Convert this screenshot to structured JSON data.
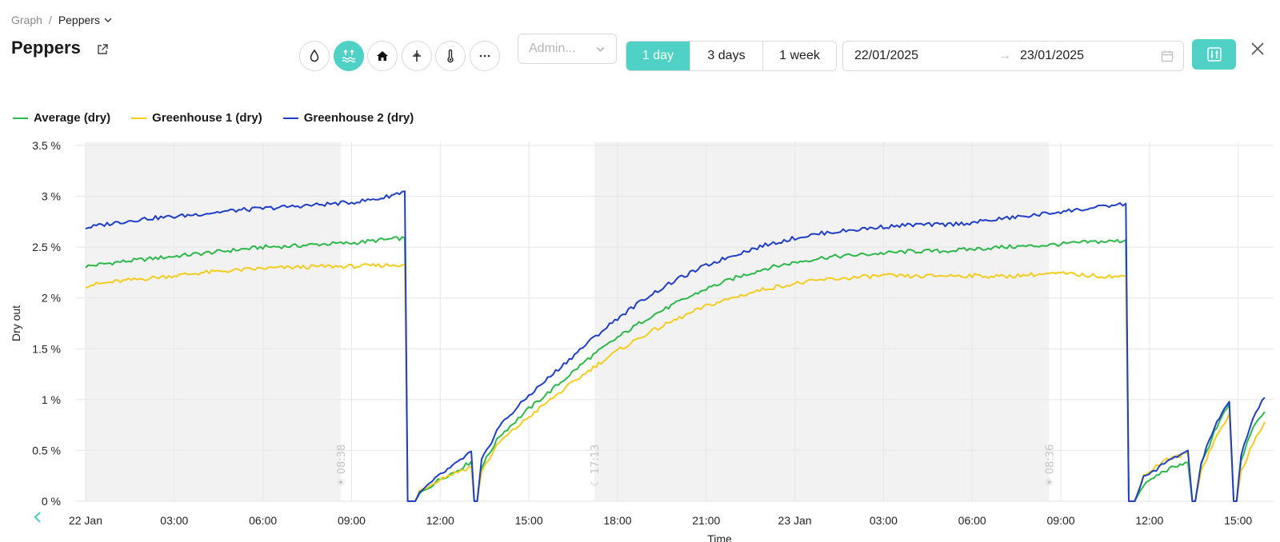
{
  "breadcrumb": {
    "root": "Graph",
    "separator": "/",
    "current": "Peppers"
  },
  "page_title": "Peppers",
  "icon_buttons": [
    {
      "icon": "droplet-icon",
      "active": false
    },
    {
      "icon": "water-level-icon",
      "active": true
    },
    {
      "icon": "greenhouse-icon",
      "active": false
    },
    {
      "icon": "sensor-probe-icon",
      "active": false
    },
    {
      "icon": "thermometer-icon",
      "active": false
    },
    {
      "icon": "more-icon",
      "active": false
    }
  ],
  "select": {
    "value": "Admin..."
  },
  "range_buttons": [
    {
      "label": "1 day",
      "active": true
    },
    {
      "label": "3 days",
      "active": false
    },
    {
      "label": "1 week",
      "active": false
    }
  ],
  "date_range": {
    "from": "22/01/2025",
    "arrow": "→",
    "to": "23/01/2025"
  },
  "colors": {
    "accent": "#4fd1c5",
    "average": "#2db84a",
    "gh1": "#f2cc1f",
    "gh2": "#1f3fc7",
    "night": "#f2f2f2",
    "grid": "#e6e6e6"
  },
  "chart_data": {
    "type": "line",
    "xlabel": "Time",
    "ylabel": "Dry out",
    "x_unit": "hours since 22 Jan 00:00",
    "xlim": [
      0,
      40.2
    ],
    "ylim": [
      0,
      3.5
    ],
    "y_ticks": [
      {
        "value": 0,
        "label": "0 %"
      },
      {
        "value": 0.5,
        "label": "0.5 %"
      },
      {
        "value": 1,
        "label": "1 %"
      },
      {
        "value": 1.5,
        "label": "1.5 %"
      },
      {
        "value": 2,
        "label": "2 %"
      },
      {
        "value": 2.5,
        "label": "2.5 %"
      },
      {
        "value": 3,
        "label": "3 %"
      },
      {
        "value": 3.5,
        "label": "3.5 %"
      }
    ],
    "x_ticks": [
      {
        "value": 0,
        "label": "22 Jan"
      },
      {
        "value": 3,
        "label": "03:00"
      },
      {
        "value": 6,
        "label": "06:00"
      },
      {
        "value": 9,
        "label": "09:00"
      },
      {
        "value": 12,
        "label": "12:00"
      },
      {
        "value": 15,
        "label": "15:00"
      },
      {
        "value": 18,
        "label": "18:00"
      },
      {
        "value": 21,
        "label": "21:00"
      },
      {
        "value": 24,
        "label": "23 Jan"
      },
      {
        "value": 27,
        "label": "03:00"
      },
      {
        "value": 30,
        "label": "06:00"
      },
      {
        "value": 33,
        "label": "09:00"
      },
      {
        "value": 36,
        "label": "12:00"
      },
      {
        "value": 39,
        "label": "15:00"
      }
    ],
    "night_bands": [
      [
        0,
        8.63
      ],
      [
        17.22,
        32.6
      ]
    ],
    "sun_markers": [
      {
        "x": 8.63,
        "label": "☀ 08:38"
      },
      {
        "x": 17.22,
        "label": "☾ 17:13"
      },
      {
        "x": 32.6,
        "label": "☀ 08:36"
      }
    ],
    "series": [
      {
        "name": "Average (dry)",
        "color": "#2db84a",
        "points": [
          [
            0,
            2.31
          ],
          [
            1,
            2.35
          ],
          [
            2,
            2.38
          ],
          [
            3,
            2.41
          ],
          [
            4,
            2.44
          ],
          [
            5,
            2.47
          ],
          [
            6,
            2.5
          ],
          [
            7,
            2.51
          ],
          [
            8,
            2.53
          ],
          [
            9,
            2.54
          ],
          [
            10,
            2.57
          ],
          [
            10.8,
            2.59
          ],
          [
            10.9,
            0
          ],
          [
            11.15,
            0
          ],
          [
            11.3,
            0.07
          ],
          [
            12,
            0.22
          ],
          [
            12.5,
            0.29
          ],
          [
            13.05,
            0.39
          ],
          [
            13.15,
            0
          ],
          [
            13.25,
            0
          ],
          [
            13.4,
            0.34
          ],
          [
            14,
            0.64
          ],
          [
            15,
            0.91
          ],
          [
            16,
            1.15
          ],
          [
            17,
            1.4
          ],
          [
            18,
            1.61
          ],
          [
            19,
            1.8
          ],
          [
            20,
            1.95
          ],
          [
            21,
            2.09
          ],
          [
            22,
            2.2
          ],
          [
            23,
            2.29
          ],
          [
            24,
            2.35
          ],
          [
            25,
            2.4
          ],
          [
            26,
            2.42
          ],
          [
            27,
            2.44
          ],
          [
            28,
            2.46
          ],
          [
            29,
            2.46
          ],
          [
            30,
            2.48
          ],
          [
            31,
            2.5
          ],
          [
            32,
            2.51
          ],
          [
            33,
            2.53
          ],
          [
            34,
            2.55
          ],
          [
            35,
            2.56
          ],
          [
            35.2,
            2.57
          ],
          [
            35.3,
            0
          ],
          [
            35.5,
            0
          ],
          [
            35.8,
            0.16
          ],
          [
            36.5,
            0.3
          ],
          [
            37.3,
            0.38
          ],
          [
            37.45,
            0
          ],
          [
            37.55,
            0
          ],
          [
            37.75,
            0.35
          ],
          [
            38.2,
            0.69
          ],
          [
            38.7,
            0.96
          ],
          [
            38.85,
            0
          ],
          [
            38.95,
            0
          ],
          [
            39.1,
            0.4
          ],
          [
            39.5,
            0.72
          ],
          [
            39.9,
            0.88
          ]
        ]
      },
      {
        "name": "Greenhouse 1 (dry)",
        "color": "#f2cc1f",
        "points": [
          [
            0,
            2.12
          ],
          [
            1,
            2.16
          ],
          [
            2,
            2.19
          ],
          [
            3,
            2.22
          ],
          [
            4,
            2.25
          ],
          [
            5,
            2.27
          ],
          [
            6,
            2.29
          ],
          [
            7,
            2.3
          ],
          [
            8,
            2.31
          ],
          [
            9,
            2.31
          ],
          [
            10,
            2.32
          ],
          [
            10.8,
            2.33
          ],
          [
            10.9,
            0
          ],
          [
            11.15,
            0
          ],
          [
            11.3,
            0.1
          ],
          [
            12,
            0.22
          ],
          [
            12.5,
            0.28
          ],
          [
            13.05,
            0.34
          ],
          [
            13.15,
            0
          ],
          [
            13.25,
            0
          ],
          [
            13.4,
            0.3
          ],
          [
            14,
            0.58
          ],
          [
            15,
            0.83
          ],
          [
            16,
            1.06
          ],
          [
            17,
            1.28
          ],
          [
            18,
            1.48
          ],
          [
            19,
            1.65
          ],
          [
            20,
            1.79
          ],
          [
            21,
            1.92
          ],
          [
            22,
            2.01
          ],
          [
            23,
            2.09
          ],
          [
            24,
            2.14
          ],
          [
            25,
            2.18
          ],
          [
            26,
            2.2
          ],
          [
            27,
            2.22
          ],
          [
            28,
            2.21
          ],
          [
            29,
            2.22
          ],
          [
            30,
            2.22
          ],
          [
            31,
            2.21
          ],
          [
            32,
            2.23
          ],
          [
            33,
            2.24
          ],
          [
            34,
            2.22
          ],
          [
            35,
            2.21
          ],
          [
            35.2,
            2.21
          ],
          [
            35.3,
            0
          ],
          [
            35.5,
            0
          ],
          [
            35.8,
            0.25
          ],
          [
            36.5,
            0.4
          ],
          [
            37.3,
            0.47
          ],
          [
            37.45,
            0
          ],
          [
            37.55,
            0
          ],
          [
            37.75,
            0.3
          ],
          [
            38.2,
            0.6
          ],
          [
            38.7,
            0.86
          ],
          [
            38.85,
            0
          ],
          [
            38.95,
            0
          ],
          [
            39.1,
            0.3
          ],
          [
            39.5,
            0.56
          ],
          [
            39.9,
            0.78
          ]
        ]
      },
      {
        "name": "Greenhouse 2 (dry)",
        "color": "#1f3fc7",
        "points": [
          [
            0,
            2.69
          ],
          [
            1,
            2.74
          ],
          [
            2,
            2.78
          ],
          [
            3,
            2.8
          ],
          [
            4,
            2.83
          ],
          [
            5,
            2.86
          ],
          [
            6,
            2.88
          ],
          [
            7,
            2.9
          ],
          [
            8,
            2.92
          ],
          [
            9,
            2.94
          ],
          [
            10,
            2.98
          ],
          [
            10.8,
            3.05
          ],
          [
            10.9,
            0
          ],
          [
            11.15,
            0
          ],
          [
            11.3,
            0.08
          ],
          [
            12,
            0.26
          ],
          [
            12.5,
            0.36
          ],
          [
            13.05,
            0.49
          ],
          [
            13.15,
            0
          ],
          [
            13.25,
            0
          ],
          [
            13.4,
            0.4
          ],
          [
            14,
            0.74
          ],
          [
            15,
            1.04
          ],
          [
            16,
            1.3
          ],
          [
            17,
            1.56
          ],
          [
            18,
            1.8
          ],
          [
            19,
            2.01
          ],
          [
            20,
            2.18
          ],
          [
            21,
            2.32
          ],
          [
            22,
            2.43
          ],
          [
            23,
            2.52
          ],
          [
            24,
            2.59
          ],
          [
            25,
            2.64
          ],
          [
            26,
            2.67
          ],
          [
            27,
            2.7
          ],
          [
            28,
            2.72
          ],
          [
            29,
            2.72
          ],
          [
            30,
            2.74
          ],
          [
            31,
            2.78
          ],
          [
            32,
            2.81
          ],
          [
            33,
            2.85
          ],
          [
            34,
            2.88
          ],
          [
            35,
            2.92
          ],
          [
            35.2,
            2.93
          ],
          [
            35.3,
            0
          ],
          [
            35.5,
            0
          ],
          [
            35.8,
            0.23
          ],
          [
            36.5,
            0.37
          ],
          [
            37.3,
            0.5
          ],
          [
            37.45,
            0
          ],
          [
            37.55,
            0
          ],
          [
            37.75,
            0.38
          ],
          [
            38.2,
            0.73
          ],
          [
            38.7,
            0.98
          ],
          [
            38.85,
            0
          ],
          [
            38.95,
            0
          ],
          [
            39.1,
            0.46
          ],
          [
            39.5,
            0.82
          ],
          [
            39.9,
            1.02
          ]
        ]
      }
    ]
  }
}
